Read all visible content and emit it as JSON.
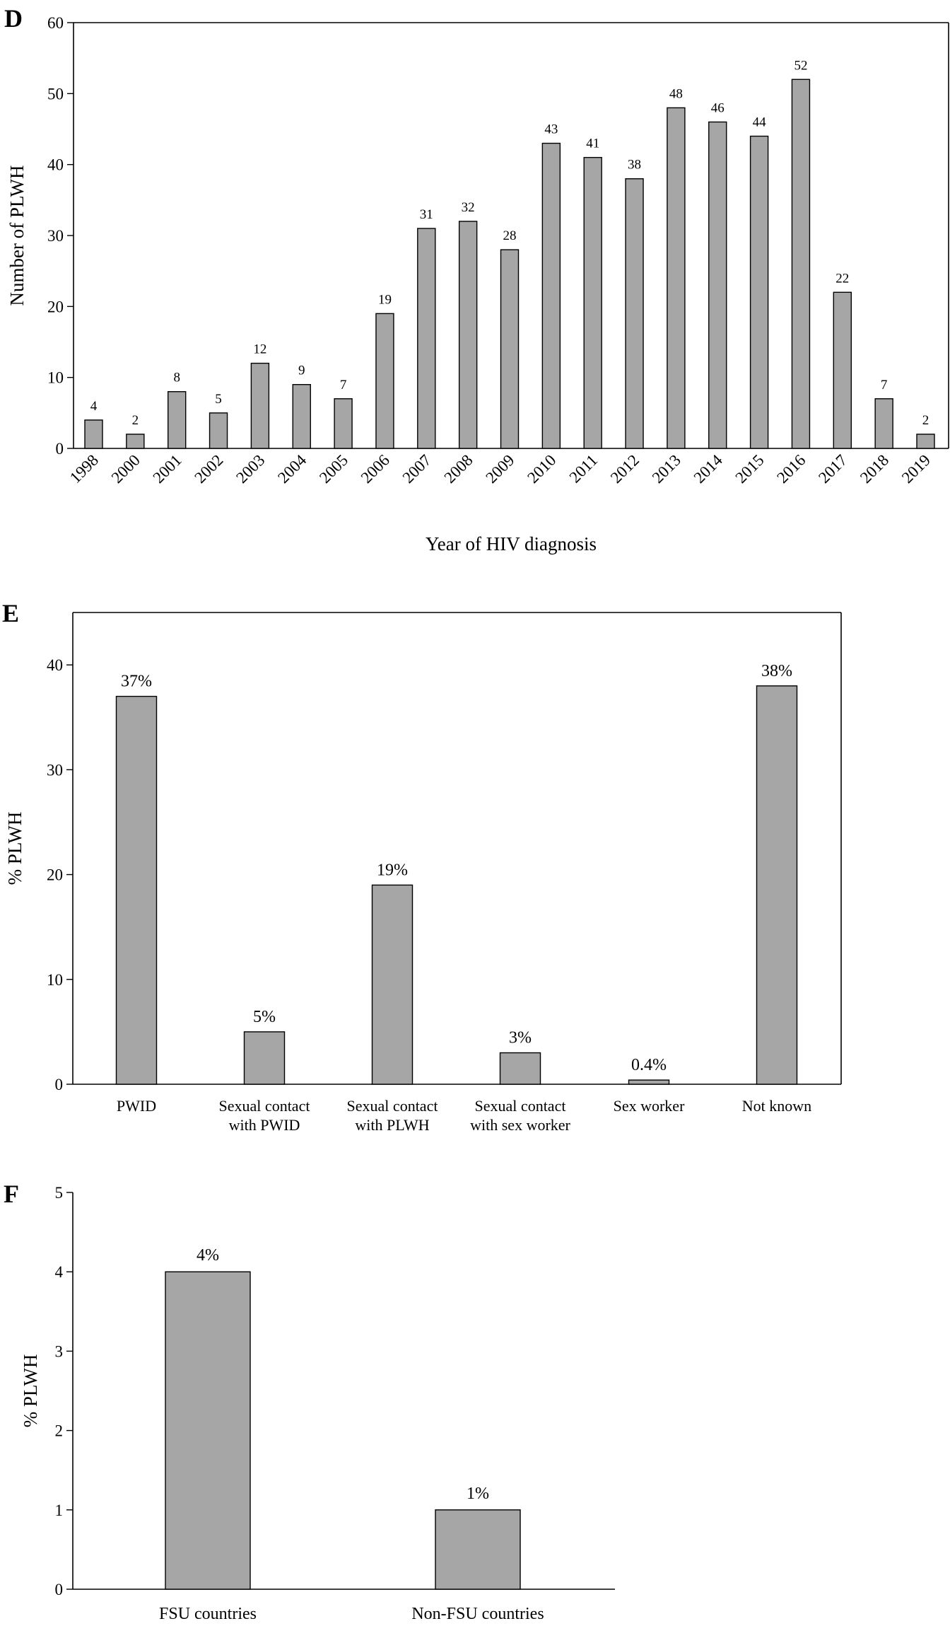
{
  "chart_data": [
    {
      "panel": "D",
      "type": "bar",
      "title": "",
      "xlabel": "Year of HIV diagnosis",
      "ylabel": "Number of PLWH",
      "ylim": [
        0,
        60
      ],
      "yticks": [
        0,
        10,
        20,
        30,
        40,
        50,
        60
      ],
      "categories": [
        "1998",
        "2000",
        "2001",
        "2002",
        "2003",
        "2004",
        "2005",
        "2006",
        "2007",
        "2008",
        "2009",
        "2010",
        "2011",
        "2012",
        "2013",
        "2014",
        "2015",
        "2016",
        "2017",
        "2018",
        "2019"
      ],
      "values": [
        4,
        2,
        8,
        5,
        12,
        9,
        7,
        19,
        31,
        32,
        28,
        43,
        41,
        38,
        48,
        46,
        44,
        52,
        22,
        7,
        2
      ],
      "value_labels": [
        "4",
        "2",
        "8",
        "5",
        "12",
        "9",
        "7",
        "19",
        "31",
        "32",
        "28",
        "43",
        "41",
        "38",
        "48",
        "46",
        "44",
        "52",
        "22",
        "7",
        "2"
      ],
      "grid": false
    },
    {
      "panel": "E",
      "type": "bar",
      "title": "",
      "xlabel": "",
      "ylabel": "% PLWH",
      "ylim": [
        0,
        45
      ],
      "yticks": [
        0,
        10,
        20,
        30,
        40
      ],
      "categories": [
        [
          "PWID"
        ],
        [
          "Sexual contact",
          "with PWID"
        ],
        [
          "Sexual contact",
          "with PLWH"
        ],
        [
          "Sexual contact",
          "with sex worker"
        ],
        [
          "Sex worker"
        ],
        [
          "Not known"
        ]
      ],
      "values": [
        37,
        5,
        19,
        3,
        0.4,
        38
      ],
      "value_labels": [
        "37%",
        "5%",
        "19%",
        "3%",
        "0.4%",
        "38%"
      ],
      "grid": false
    },
    {
      "panel": "F",
      "type": "bar",
      "title": "",
      "xlabel": "",
      "ylabel": "% PLWH",
      "ylim": [
        0,
        5
      ],
      "yticks": [
        0,
        1,
        2,
        3,
        4,
        5
      ],
      "categories": [
        [
          "FSU countries"
        ],
        [
          "Non-FSU countries"
        ]
      ],
      "values": [
        4,
        1
      ],
      "value_labels": [
        "4%",
        "1%"
      ],
      "grid": false
    }
  ]
}
